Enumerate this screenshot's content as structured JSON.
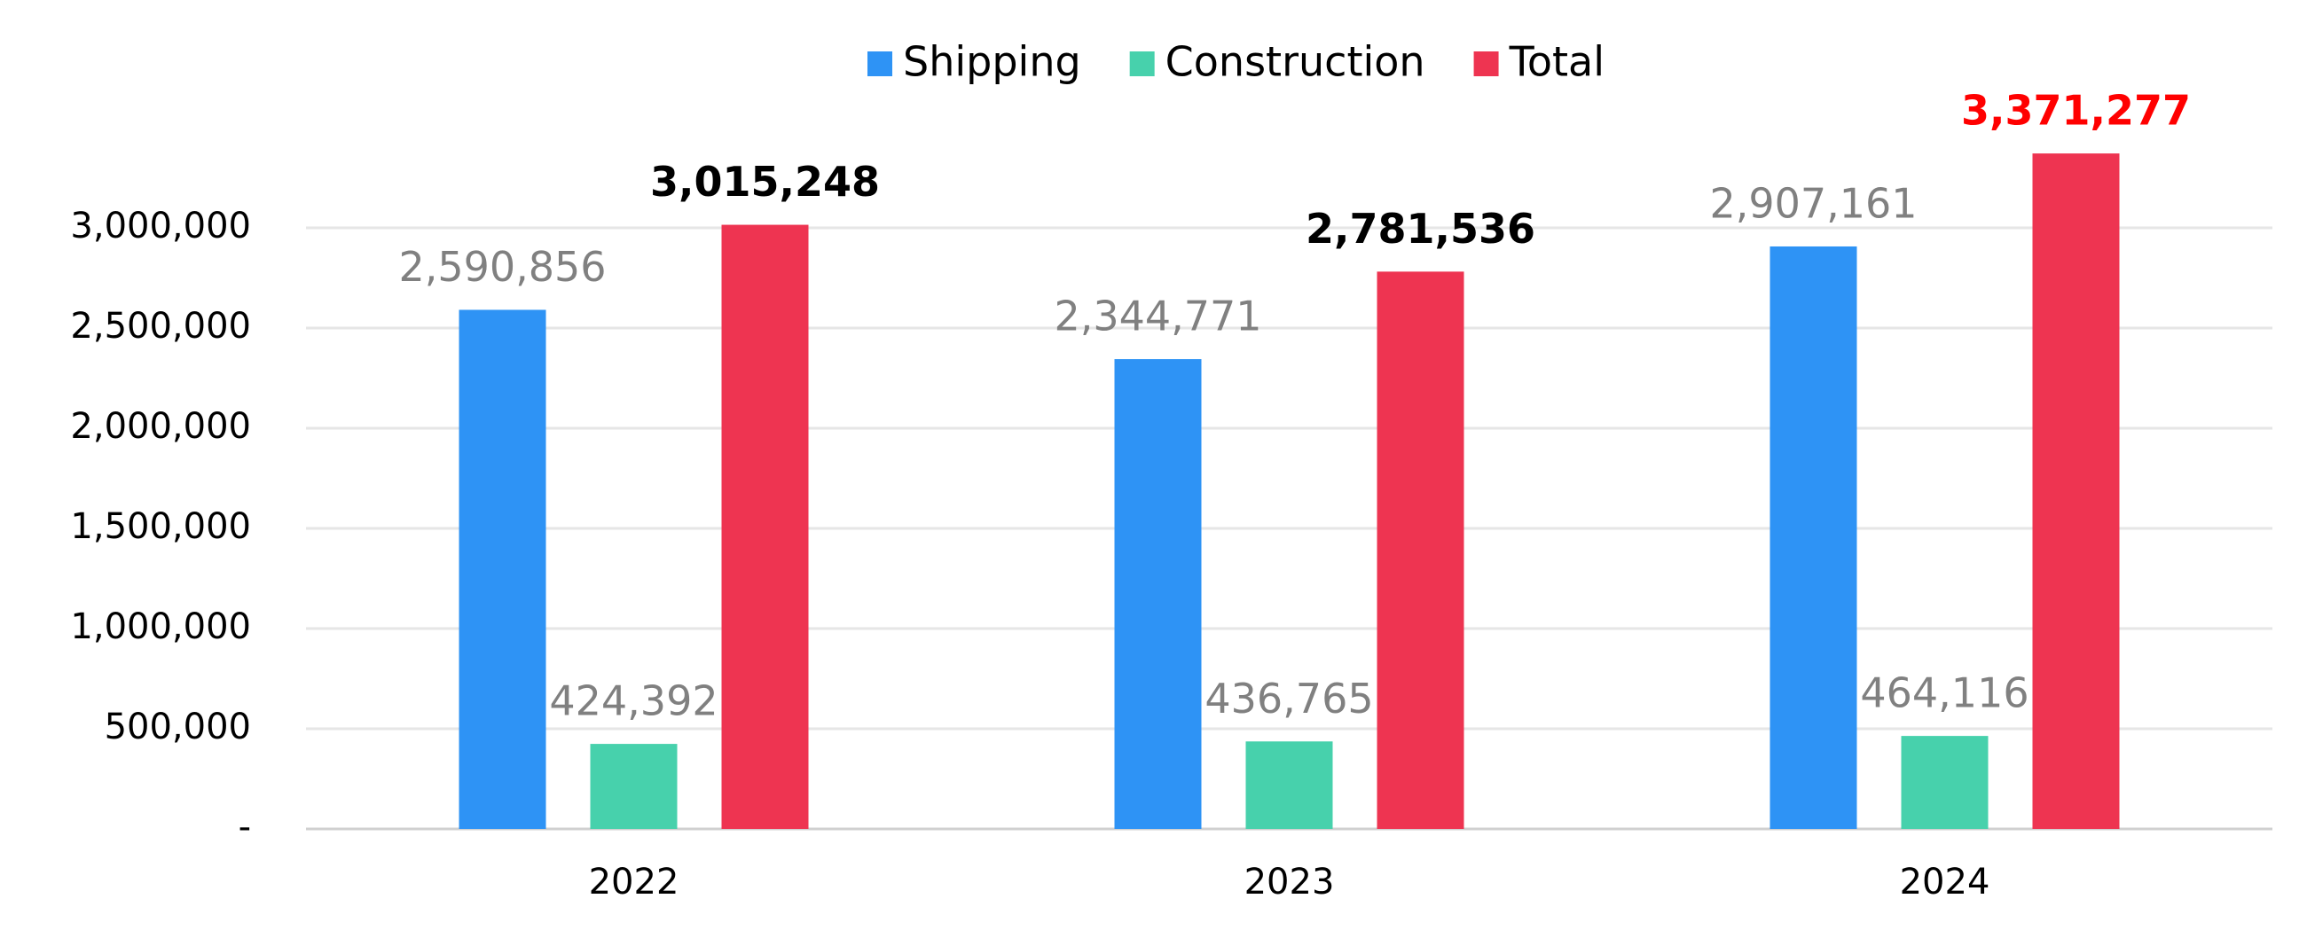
{
  "chart_data": {
    "type": "bar",
    "categories": [
      "2022",
      "2023",
      "2024"
    ],
    "series": [
      {
        "name": "Shipping",
        "color": "#2e93f5",
        "values": [
          2590856,
          2344771,
          2907161
        ],
        "value_labels": [
          "2,590,856",
          "2,344,771",
          "2,907,161"
        ],
        "label_colors": [
          "#808080",
          "#808080",
          "#808080"
        ],
        "label_weight": "normal"
      },
      {
        "name": "Construction",
        "color": "#47d1ac",
        "values": [
          424392,
          436765,
          464116
        ],
        "value_labels": [
          "424,392",
          "436,765",
          "464,116"
        ],
        "label_colors": [
          "#808080",
          "#808080",
          "#808080"
        ],
        "label_weight": "normal"
      },
      {
        "name": "Total",
        "color": "#ee3451",
        "values": [
          3015248,
          2781536,
          3371277
        ],
        "value_labels": [
          "3,015,248",
          "2,781,536",
          "3,371,277"
        ],
        "label_colors": [
          "#000000",
          "#000000",
          "#ff0000"
        ],
        "label_weight": "bold"
      }
    ],
    "ylim": [
      0,
      3500000
    ],
    "yticks": [
      {
        "value": 0,
        "label": "-"
      },
      {
        "value": 500000,
        "label": "500,000"
      },
      {
        "value": 1000000,
        "label": "1,000,000"
      },
      {
        "value": 1500000,
        "label": "1,500,000"
      },
      {
        "value": 2000000,
        "label": "2,000,000"
      },
      {
        "value": 2500000,
        "label": "2,500,000"
      },
      {
        "value": 3000000,
        "label": "3,000,000"
      }
    ],
    "grid": true,
    "legend": "top"
  }
}
